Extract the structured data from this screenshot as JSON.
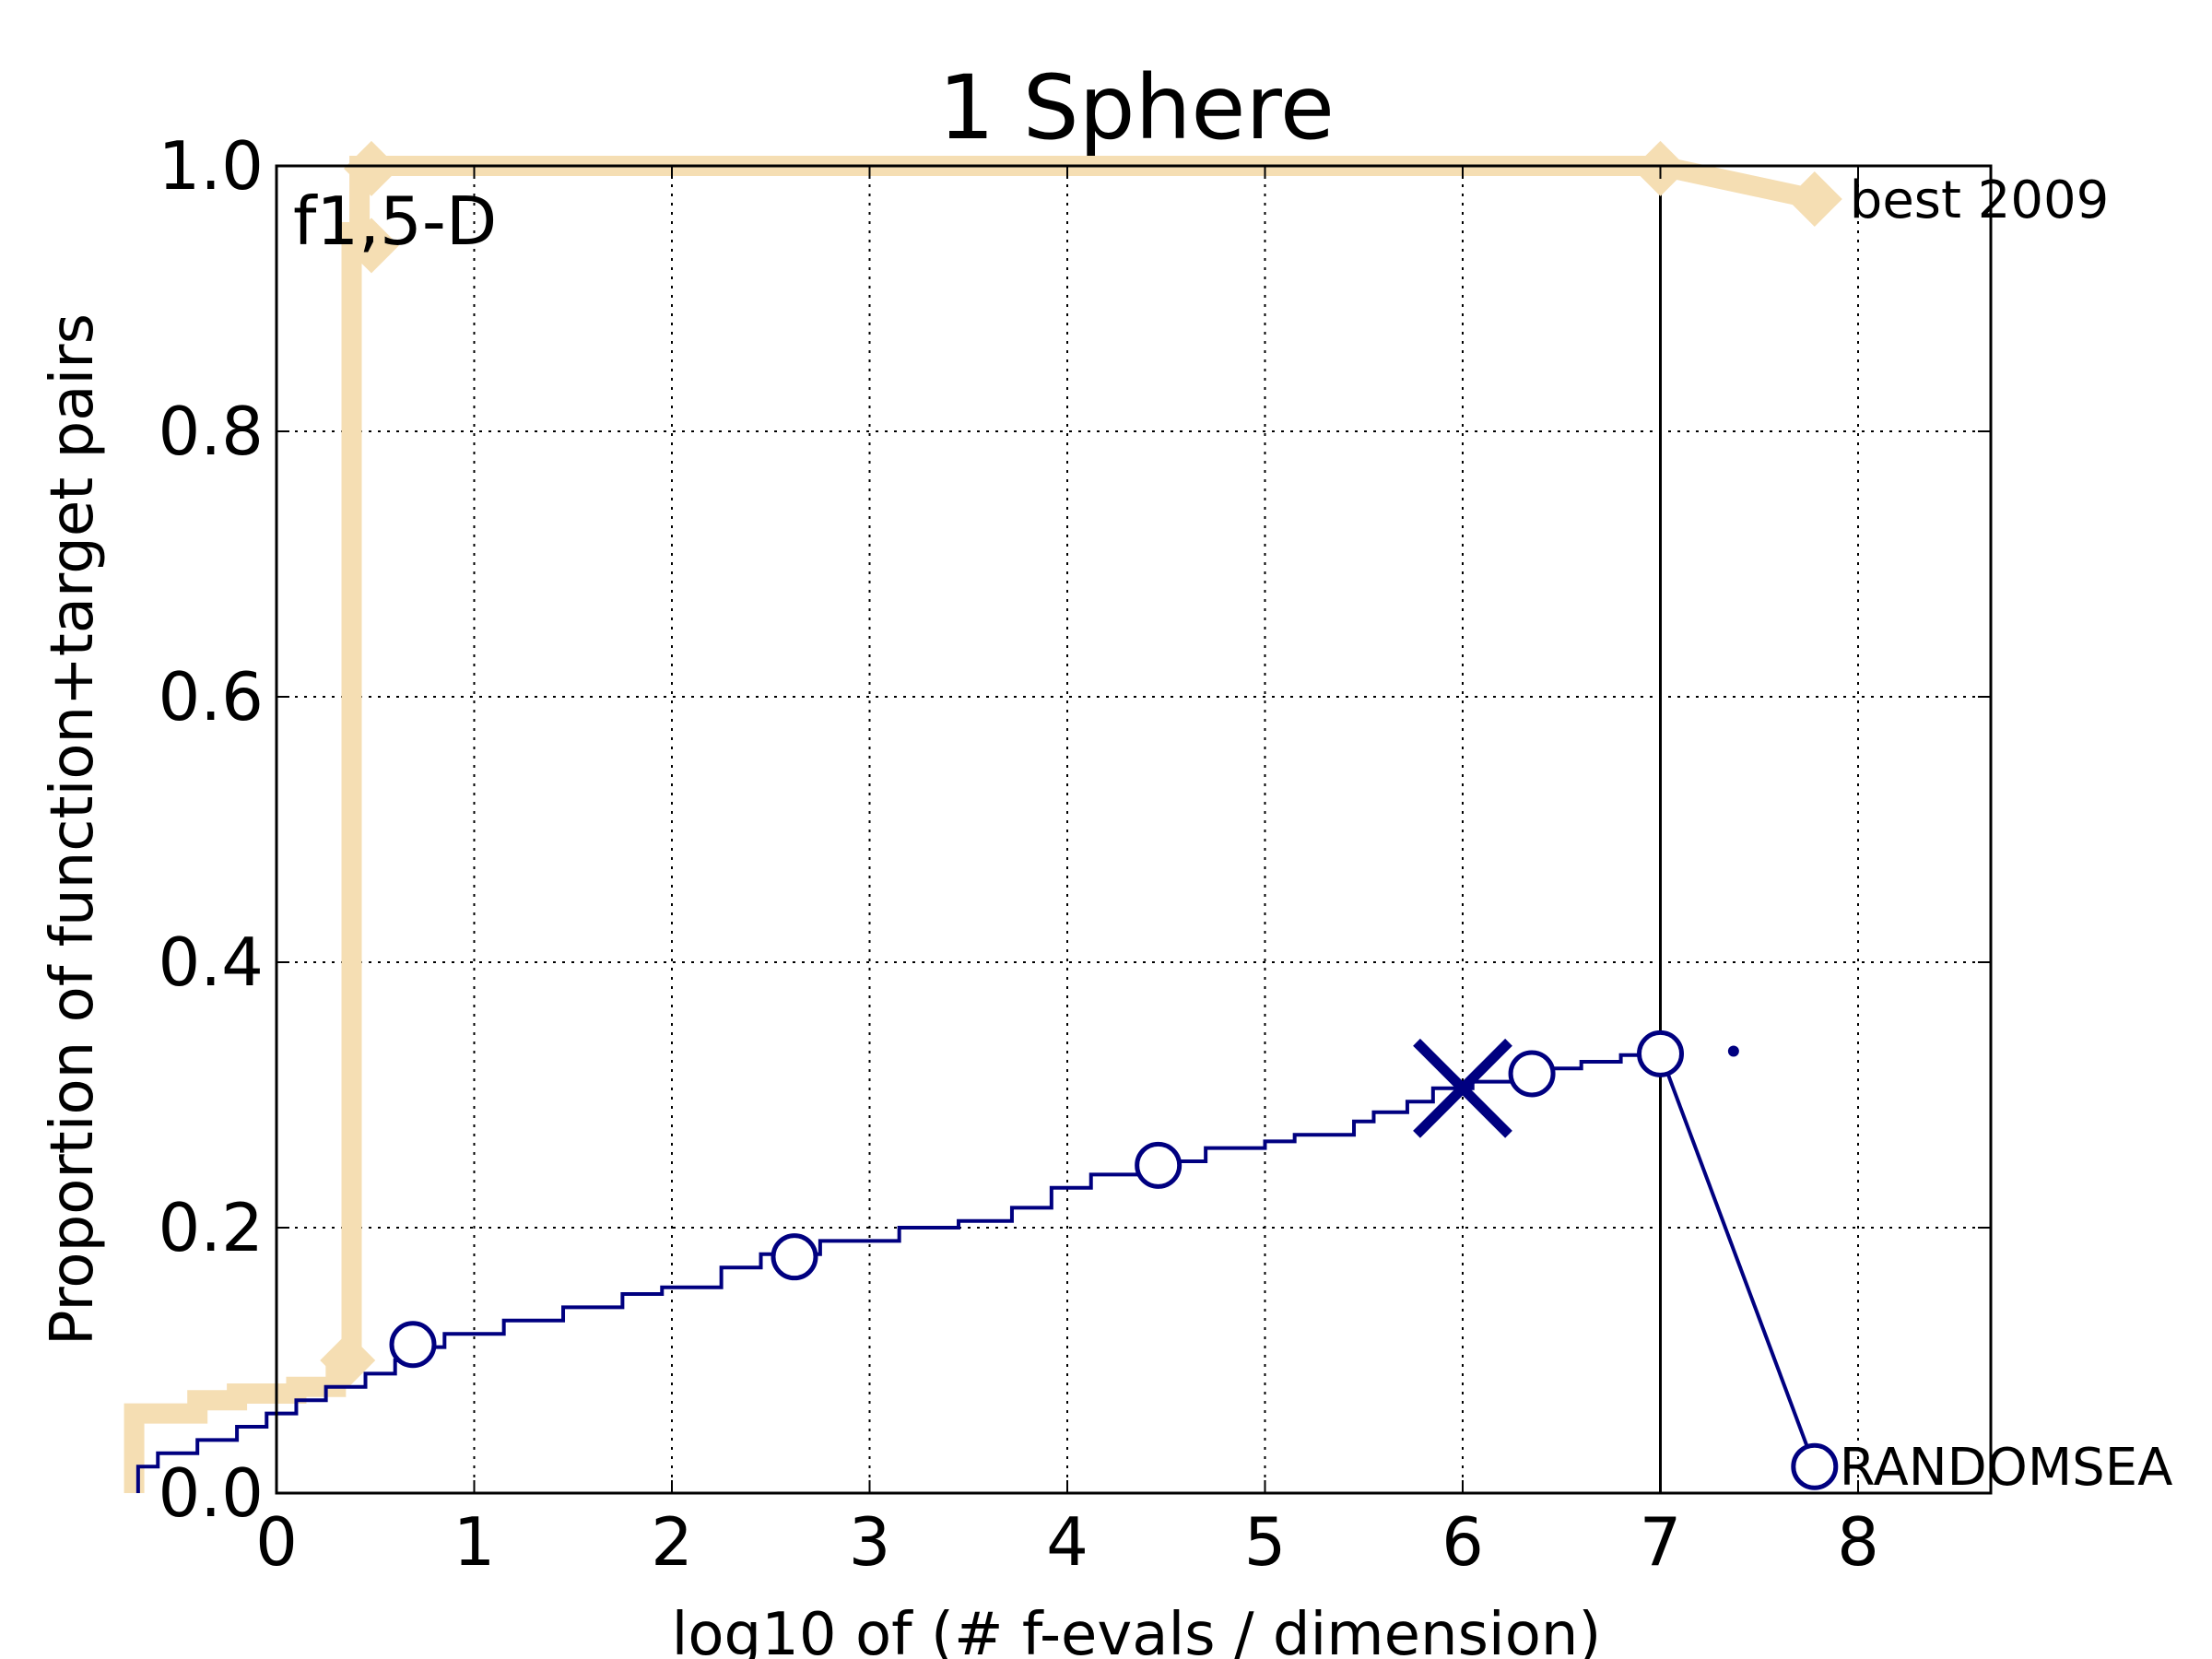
{
  "chart_data": {
    "type": "line",
    "title": "1 Sphere",
    "xlabel": "log10 of (# f-evals / dimension)",
    "ylabel": "Proportion of function+target pairs",
    "annotation": "f1,5-D",
    "xlim": [
      -0.72,
      8.68
    ],
    "ylim": [
      0,
      1.0
    ],
    "grid": true,
    "x_ticks": [
      0,
      1,
      2,
      3,
      4,
      5,
      6,
      7,
      8
    ],
    "x_tick_labels": [
      "0",
      "1",
      "2",
      "3",
      "4",
      "5",
      "6",
      "7",
      "8"
    ],
    "y_ticks": [
      0.0,
      0.2,
      0.4,
      0.6,
      0.8,
      1.0
    ],
    "y_tick_labels": [
      "0.0",
      "0.2",
      "0.4",
      "0.6",
      "0.8",
      "1.0"
    ],
    "vline_x": 7.0,
    "series": [
      {
        "name": "best 2009",
        "color": "#f5deb3",
        "step_points": [
          [
            -0.72,
            0.0
          ],
          [
            -0.72,
            0.06
          ],
          [
            -0.4,
            0.06
          ],
          [
            -0.4,
            0.07
          ],
          [
            -0.2,
            0.07
          ],
          [
            -0.2,
            0.075
          ],
          [
            0.1,
            0.075
          ],
          [
            0.1,
            0.08
          ],
          [
            0.3,
            0.08
          ],
          [
            0.3,
            0.095
          ],
          [
            0.36,
            0.095
          ],
          [
            0.36,
            0.105
          ],
          [
            0.38,
            0.105
          ],
          [
            0.38,
            0.95
          ],
          [
            0.42,
            0.95
          ],
          [
            0.42,
            1.0
          ],
          [
            7.0,
            1.0
          ]
        ],
        "markers": [
          [
            0.36,
            0.1
          ],
          [
            0.48,
            0.94
          ],
          [
            0.48,
            0.998
          ],
          [
            7.0,
            0.998
          ]
        ],
        "tail": [
          [
            7.0,
            1.0
          ],
          [
            7.78,
            0.975
          ]
        ],
        "label_point": [
          7.78,
          0.975
        ]
      },
      {
        "name": "RANDOMSEA",
        "color": "#000080",
        "step_points": [
          [
            -0.7,
            0.0
          ],
          [
            -0.7,
            0.02
          ],
          [
            -0.6,
            0.02
          ],
          [
            -0.6,
            0.03
          ],
          [
            -0.4,
            0.03
          ],
          [
            -0.4,
            0.04
          ],
          [
            -0.2,
            0.04
          ],
          [
            -0.2,
            0.05
          ],
          [
            -0.05,
            0.05
          ],
          [
            -0.05,
            0.06
          ],
          [
            0.1,
            0.06
          ],
          [
            0.1,
            0.07
          ],
          [
            0.25,
            0.07
          ],
          [
            0.25,
            0.08
          ],
          [
            0.45,
            0.08
          ],
          [
            0.45,
            0.09
          ],
          [
            0.6,
            0.09
          ],
          [
            0.6,
            0.1
          ],
          [
            0.7,
            0.1
          ],
          [
            0.7,
            0.11
          ],
          [
            0.85,
            0.11
          ],
          [
            0.85,
            0.12
          ],
          [
            1.15,
            0.12
          ],
          [
            1.15,
            0.13
          ],
          [
            1.45,
            0.13
          ],
          [
            1.45,
            0.14
          ],
          [
            1.75,
            0.14
          ],
          [
            1.75,
            0.15
          ],
          [
            1.95,
            0.15
          ],
          [
            1.95,
            0.155
          ],
          [
            2.25,
            0.155
          ],
          [
            2.25,
            0.17
          ],
          [
            2.45,
            0.17
          ],
          [
            2.45,
            0.18
          ],
          [
            2.75,
            0.18
          ],
          [
            2.75,
            0.19
          ],
          [
            3.15,
            0.19
          ],
          [
            3.15,
            0.2
          ],
          [
            3.45,
            0.2
          ],
          [
            3.45,
            0.205
          ],
          [
            3.72,
            0.205
          ],
          [
            3.72,
            0.215
          ],
          [
            3.92,
            0.215
          ],
          [
            3.92,
            0.23
          ],
          [
            4.12,
            0.23
          ],
          [
            4.12,
            0.24
          ],
          [
            4.4,
            0.24
          ],
          [
            4.4,
            0.25
          ],
          [
            4.7,
            0.25
          ],
          [
            4.7,
            0.26
          ],
          [
            5.0,
            0.26
          ],
          [
            5.0,
            0.265
          ],
          [
            5.15,
            0.265
          ],
          [
            5.15,
            0.27
          ],
          [
            5.45,
            0.27
          ],
          [
            5.45,
            0.28
          ],
          [
            5.55,
            0.28
          ],
          [
            5.55,
            0.287
          ],
          [
            5.72,
            0.287
          ],
          [
            5.72,
            0.295
          ],
          [
            5.85,
            0.295
          ],
          [
            5.85,
            0.305
          ],
          [
            6.05,
            0.305
          ],
          [
            6.05,
            0.31
          ],
          [
            6.25,
            0.31
          ],
          [
            6.25,
            0.315
          ],
          [
            6.45,
            0.315
          ],
          [
            6.45,
            0.32
          ],
          [
            6.6,
            0.32
          ],
          [
            6.6,
            0.325
          ],
          [
            6.8,
            0.325
          ],
          [
            6.8,
            0.33
          ],
          [
            7.0,
            0.33
          ]
        ],
        "markers": [
          [
            0.69,
            0.112
          ],
          [
            2.62,
            0.178
          ],
          [
            4.46,
            0.247
          ],
          [
            6.35,
            0.316
          ],
          [
            7.0,
            0.331
          ],
          [
            7.78,
            0.02
          ]
        ],
        "tail": [
          [
            7.0,
            0.331
          ],
          [
            7.78,
            0.02
          ]
        ],
        "x_marker": [
          6.0,
          0.305
        ],
        "dot": [
          7.37,
          0.333
        ],
        "label_point": [
          7.78,
          0.02
        ]
      }
    ]
  }
}
